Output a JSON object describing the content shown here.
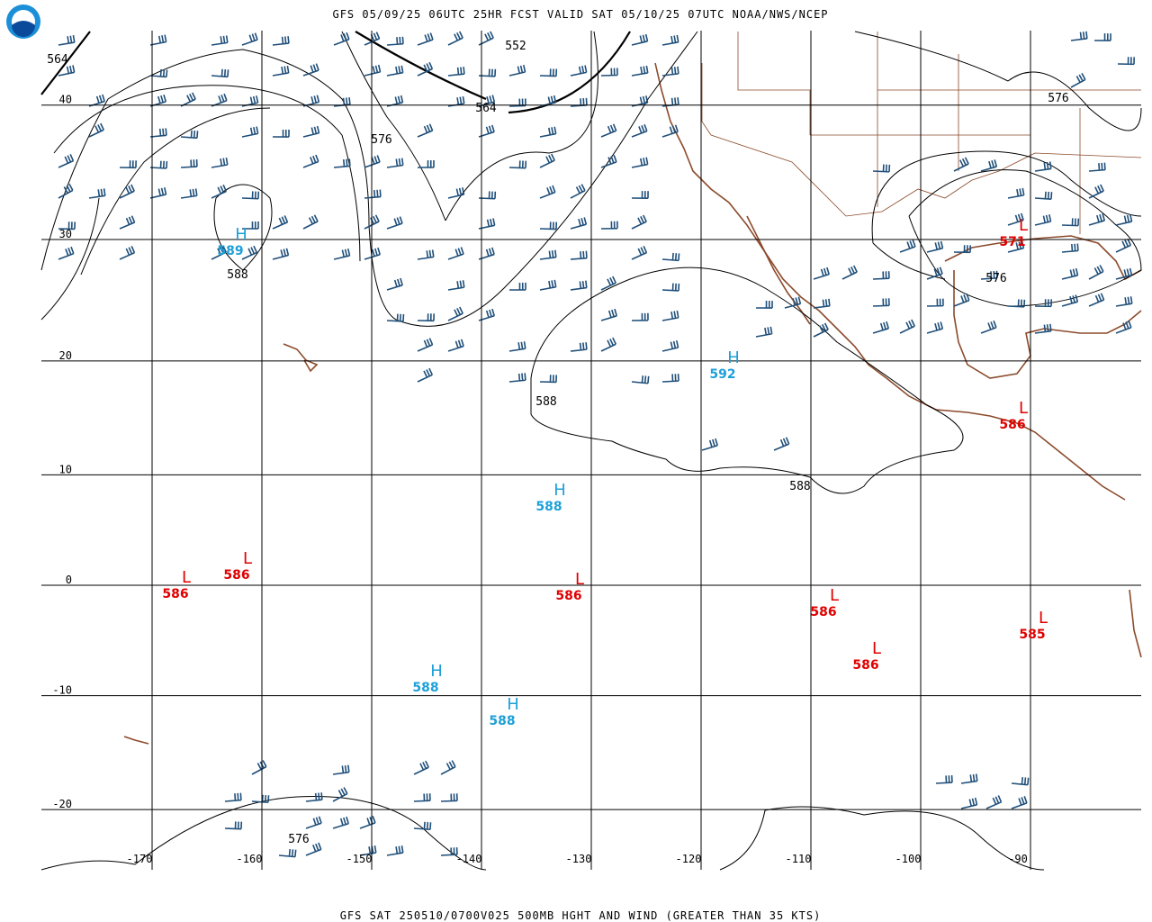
{
  "header": {
    "title": "GFS 05/09/25 06UTC 25HR FCST VALID SAT 05/10/25 07UTC NOAA/NWS/NCEP"
  },
  "footer": {
    "caption": "GFS SAT 250510/0700V025 500MB HGHT AND WIND (GREATER THAN 35 KTS)"
  },
  "map": {
    "lon_labels": [
      -170,
      -160,
      -150,
      -140,
      -130,
      -120,
      -110,
      -100,
      -90
    ],
    "lat_labels": [
      40,
      30,
      20,
      10,
      0,
      -10,
      -20
    ],
    "systems": [
      {
        "letter": "H",
        "value": 589
      },
      {
        "letter": "H",
        "value": 592
      },
      {
        "letter": "H",
        "value": 588
      },
      {
        "letter": "H",
        "value": 588
      },
      {
        "letter": "H",
        "value": 588
      },
      {
        "letter": "L",
        "value": 586
      },
      {
        "letter": "L",
        "value": 586
      },
      {
        "letter": "L",
        "value": 586
      },
      {
        "letter": "L",
        "value": 586
      },
      {
        "letter": "L",
        "value": 586
      },
      {
        "letter": "L",
        "value": 585
      },
      {
        "letter": "L",
        "value": 586
      },
      {
        "letter": "L",
        "value": 571
      }
    ],
    "contour_labels": [
      564,
      552,
      564,
      576,
      588,
      588,
      588,
      576,
      576,
      576
    ]
  }
}
